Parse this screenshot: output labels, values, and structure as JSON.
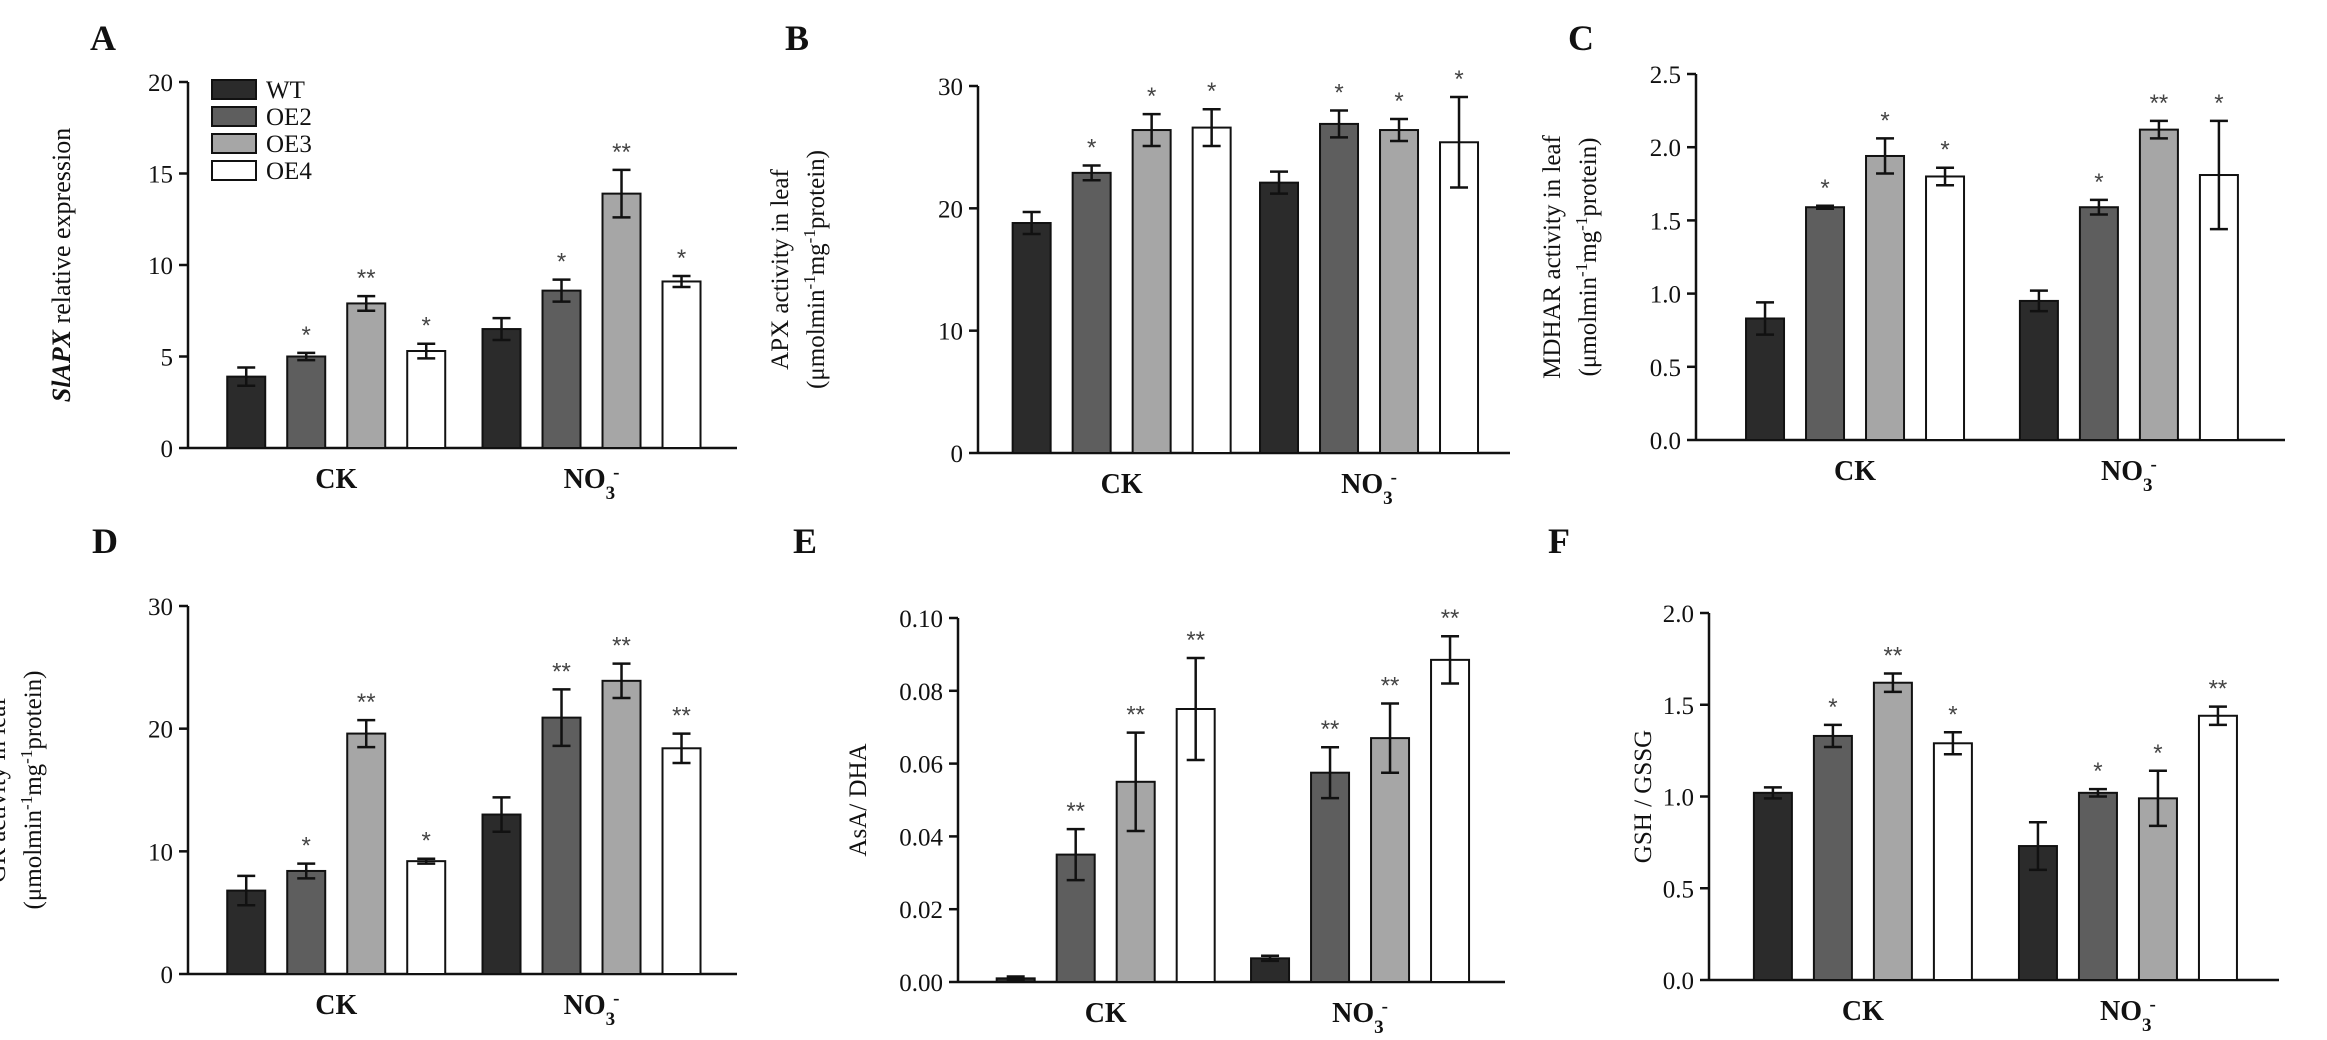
{
  "figure": {
    "groups": [
      "WT",
      "OE2",
      "OE3",
      "OE4"
    ],
    "colors": [
      "#2b2b2b",
      "#5e5e5e",
      "#a6a6a6",
      "#ffffff"
    ],
    "categories": [
      "CK",
      "NO3-"
    ],
    "category_labels": [
      {
        "text": "CK"
      },
      {
        "text": "NO",
        "sub": "3",
        "sup": "-"
      }
    ]
  },
  "chart_data": [
    {
      "panel": "A",
      "type": "bar",
      "ylabel": [
        [
          {
            "t": "Sl"
          },
          {
            "t": "APX",
            "i": true
          },
          {
            "t": " relative expression"
          }
        ]
      ],
      "ylabel_font": "sans",
      "ylabel_italic_first": true,
      "ylim": [
        0,
        20
      ],
      "yticks": [
        0,
        5,
        10,
        15,
        20
      ],
      "ytick_labels": [
        "0",
        "5",
        "10",
        "15",
        "20"
      ],
      "legend": true,
      "series": [
        {
          "name": "WT",
          "values": [
            3.9,
            6.5
          ],
          "errors": [
            0.5,
            0.6
          ],
          "sig": [
            "",
            ""
          ]
        },
        {
          "name": "OE2",
          "values": [
            5.0,
            8.6
          ],
          "errors": [
            0.2,
            0.6
          ],
          "sig": [
            "*",
            "*"
          ]
        },
        {
          "name": "OE3",
          "values": [
            7.9,
            13.9
          ],
          "errors": [
            0.4,
            1.3
          ],
          "sig": [
            "**",
            "**"
          ]
        },
        {
          "name": "OE4",
          "values": [
            5.3,
            9.1
          ],
          "errors": [
            0.4,
            0.3
          ],
          "sig": [
            "*",
            "*"
          ]
        }
      ]
    },
    {
      "panel": "B",
      "type": "bar",
      "ylabel": [
        [
          {
            "t": "APX activity in leaf"
          }
        ],
        [
          {
            "t": "(μmolmin"
          },
          {
            "t": "-1",
            "sup": true
          },
          {
            "t": "mg"
          },
          {
            "t": "-1",
            "sup": true
          },
          {
            "t": "protein)"
          }
        ]
      ],
      "ylim": [
        0,
        30
      ],
      "yticks": [
        0,
        10,
        20,
        30
      ],
      "ytick_labels": [
        "0",
        "10",
        "20",
        "30"
      ],
      "series": [
        {
          "name": "WT",
          "values": [
            18.8,
            22.1
          ],
          "errors": [
            0.9,
            0.9
          ],
          "sig": [
            "",
            ""
          ]
        },
        {
          "name": "OE2",
          "values": [
            22.9,
            26.9
          ],
          "errors": [
            0.6,
            1.1
          ],
          "sig": [
            "*",
            "*"
          ]
        },
        {
          "name": "OE3",
          "values": [
            26.4,
            26.4
          ],
          "errors": [
            1.3,
            0.9
          ],
          "sig": [
            "*",
            "*"
          ]
        },
        {
          "name": "OE4",
          "values": [
            26.6,
            25.4
          ],
          "errors": [
            1.5,
            3.7
          ],
          "sig": [
            "*",
            "*"
          ]
        }
      ]
    },
    {
      "panel": "C",
      "type": "bar",
      "ylabel": [
        [
          {
            "t": "MDHAR activity in leaf"
          }
        ],
        [
          {
            "t": "(μmolmin"
          },
          {
            "t": "-1",
            "sup": true
          },
          {
            "t": "mg"
          },
          {
            "t": "-1",
            "sup": true
          },
          {
            "t": "protein)"
          }
        ]
      ],
      "ylim": [
        0,
        2.5
      ],
      "yticks": [
        0,
        0.5,
        1.0,
        1.5,
        2.0,
        2.5
      ],
      "ytick_labels": [
        "0.0",
        "0.5",
        "1.0",
        "1.5",
        "2.0",
        "2.5"
      ],
      "series": [
        {
          "name": "WT",
          "values": [
            0.83,
            0.95
          ],
          "errors": [
            0.11,
            0.07
          ],
          "sig": [
            "",
            ""
          ]
        },
        {
          "name": "OE2",
          "values": [
            1.59,
            1.59
          ],
          "errors": [
            0.01,
            0.05
          ],
          "sig": [
            "*",
            "*"
          ]
        },
        {
          "name": "OE3",
          "values": [
            1.94,
            2.12
          ],
          "errors": [
            0.12,
            0.06
          ],
          "sig": [
            "*",
            "**"
          ]
        },
        {
          "name": "OE4",
          "values": [
            1.8,
            1.81
          ],
          "errors": [
            0.06,
            0.37
          ],
          "sig": [
            "*",
            "*"
          ]
        }
      ]
    },
    {
      "panel": "D",
      "type": "bar",
      "ylabel": [
        [
          {
            "t": "GR activity in leaf"
          }
        ],
        [
          {
            "t": "(μmolmin"
          },
          {
            "t": "-1",
            "sup": true
          },
          {
            "t": "mg"
          },
          {
            "t": "-1",
            "sup": true
          },
          {
            "t": "protein)"
          }
        ]
      ],
      "ylim": [
        0,
        30
      ],
      "yticks": [
        0,
        10,
        20,
        30
      ],
      "ytick_labels": [
        "0",
        "10",
        "20",
        "30"
      ],
      "series": [
        {
          "name": "WT",
          "values": [
            6.8,
            13.0
          ],
          "errors": [
            1.2,
            1.4
          ],
          "sig": [
            "",
            ""
          ]
        },
        {
          "name": "OE2",
          "values": [
            8.4,
            20.9
          ],
          "errors": [
            0.6,
            2.3
          ],
          "sig": [
            "*",
            "**"
          ]
        },
        {
          "name": "OE3",
          "values": [
            19.6,
            23.9
          ],
          "errors": [
            1.1,
            1.4
          ],
          "sig": [
            "**",
            "**"
          ]
        },
        {
          "name": "OE4",
          "values": [
            9.2,
            18.4
          ],
          "errors": [
            0.2,
            1.2
          ],
          "sig": [
            "*",
            "**"
          ]
        }
      ]
    },
    {
      "panel": "E",
      "type": "bar",
      "ylabel": [
        [
          {
            "t": "AsA/ DHA"
          }
        ]
      ],
      "ylim": [
        0,
        0.1
      ],
      "yticks": [
        0,
        0.02,
        0.04,
        0.06,
        0.08,
        0.1
      ],
      "ytick_labels": [
        "0.00",
        "0.02",
        "0.04",
        "0.06",
        "0.08",
        "0.10"
      ],
      "series": [
        {
          "name": "WT",
          "values": [
            0.001,
            0.0065
          ],
          "errors": [
            0.0005,
            0.0007
          ],
          "sig": [
            "",
            ""
          ]
        },
        {
          "name": "OE2",
          "values": [
            0.035,
            0.0575
          ],
          "errors": [
            0.007,
            0.007
          ],
          "sig": [
            "**",
            "**"
          ]
        },
        {
          "name": "OE3",
          "values": [
            0.055,
            0.067
          ],
          "errors": [
            0.0135,
            0.0095
          ],
          "sig": [
            "**",
            "**"
          ]
        },
        {
          "name": "OE4",
          "values": [
            0.075,
            0.0885
          ],
          "errors": [
            0.014,
            0.0065
          ],
          "sig": [
            "**",
            "**"
          ]
        }
      ]
    },
    {
      "panel": "F",
      "type": "bar",
      "ylabel": [
        [
          {
            "t": "GSH / GSSG"
          }
        ]
      ],
      "ylim": [
        0,
        2.0
      ],
      "yticks": [
        0,
        0.5,
        1.0,
        1.5,
        2.0
      ],
      "ytick_labels": [
        "0.0",
        "0.5",
        "1.0",
        "1.5",
        "2.0"
      ],
      "series": [
        {
          "name": "WT",
          "values": [
            1.02,
            0.73
          ],
          "errors": [
            0.03,
            0.13
          ],
          "sig": [
            "",
            ""
          ]
        },
        {
          "name": "OE2",
          "values": [
            1.33,
            1.02
          ],
          "errors": [
            0.06,
            0.02
          ],
          "sig": [
            "*",
            "*"
          ]
        },
        {
          "name": "OE3",
          "values": [
            1.62,
            0.99
          ],
          "errors": [
            0.05,
            0.15
          ],
          "sig": [
            "**",
            "*"
          ]
        },
        {
          "name": "OE4",
          "values": [
            1.29,
            1.44
          ],
          "errors": [
            0.06,
            0.05
          ],
          "sig": [
            "*",
            "**"
          ]
        }
      ]
    }
  ]
}
